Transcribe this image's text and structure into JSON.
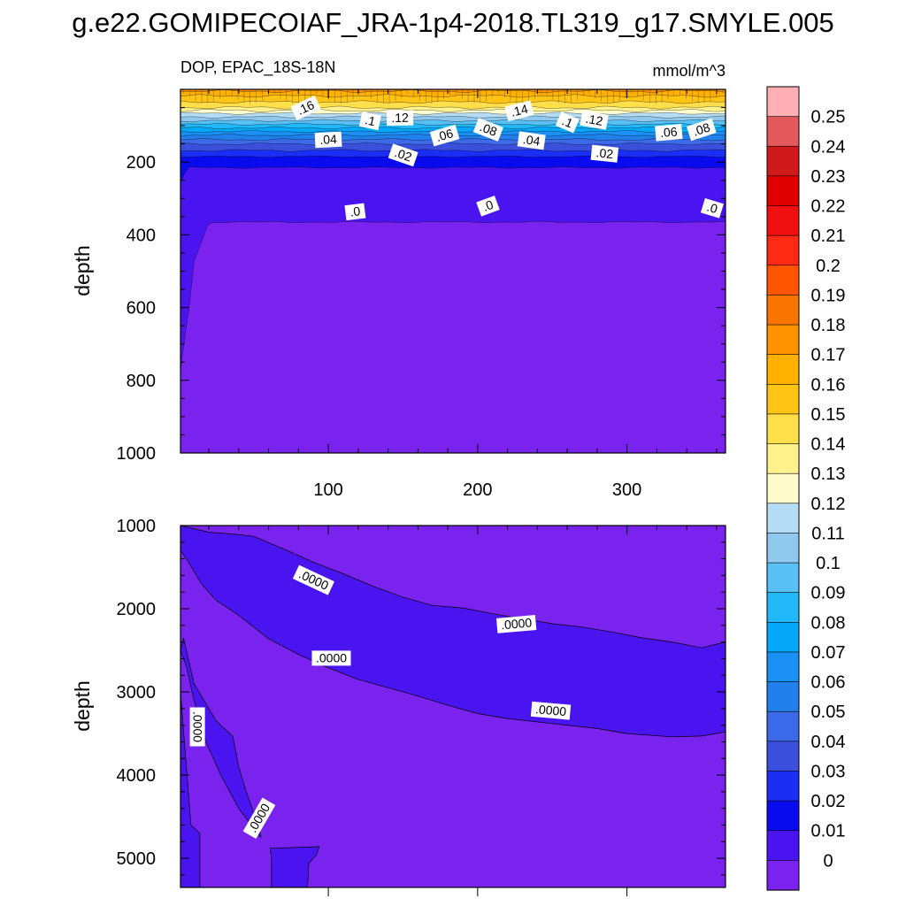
{
  "figure_title": "g.e22.GOMIPECOIAF_JRA-1p4-2018.TL319_g17.SMYLE.005",
  "chart_data": [
    {
      "type": "heatmap",
      "panel": "upper",
      "title_left": "DOP, EPAC_18S-18N",
      "title_right": "mmol/m^3",
      "xlabel": "",
      "ylabel": "depth",
      "xlim": [
        1,
        366
      ],
      "ylim": [
        1000,
        0
      ],
      "xticks": [
        100,
        200,
        300
      ],
      "xticklabels": [
        "100",
        "200",
        "300"
      ],
      "yticks": [
        200,
        400,
        600,
        800,
        1000
      ],
      "yticklabels": [
        "200",
        "400",
        "600",
        "800",
        "1000"
      ],
      "layers": [
        {
          "value": 0.17,
          "top": 0,
          "base": 5
        },
        {
          "value": 0.16,
          "top": 5,
          "base": 18
        },
        {
          "value": 0.15,
          "top": 18,
          "base": 35
        },
        {
          "value": 0.14,
          "top": 35,
          "base": 50
        },
        {
          "value": 0.13,
          "top": 50,
          "base": 58
        },
        {
          "value": 0.12,
          "top": 58,
          "base": 66
        },
        {
          "value": 0.11,
          "top": 66,
          "base": 76
        },
        {
          "value": 0.1,
          "top": 76,
          "base": 86
        },
        {
          "value": 0.09,
          "top": 86,
          "base": 96
        },
        {
          "value": 0.08,
          "top": 96,
          "base": 106
        },
        {
          "value": 0.07,
          "top": 106,
          "base": 116
        },
        {
          "value": 0.06,
          "top": 116,
          "base": 126
        },
        {
          "value": 0.05,
          "top": 126,
          "base": 138
        },
        {
          "value": 0.04,
          "top": 138,
          "base": 150
        },
        {
          "value": 0.03,
          "top": 150,
          "base": 168
        },
        {
          "value": 0.02,
          "top": 168,
          "base": 185
        },
        {
          "value": 0.01,
          "top": 185,
          "base": 215
        },
        {
          "value": 0.005,
          "top": 215,
          "base": 365
        },
        {
          "value": 0.0,
          "top": 365,
          "base": 1000
        }
      ],
      "contour_labels": [
        {
          "text": ".16",
          "x": 85,
          "y": 52
        },
        {
          "text": ".1",
          "x": 128,
          "y": 88
        },
        {
          "text": ".12",
          "x": 148,
          "y": 80
        },
        {
          "text": ".14",
          "x": 228,
          "y": 60
        },
        {
          "text": ".1",
          "x": 260,
          "y": 92
        },
        {
          "text": ".12",
          "x": 278,
          "y": 86
        },
        {
          "text": ".04",
          "x": 100,
          "y": 140
        },
        {
          "text": ".06",
          "x": 178,
          "y": 128
        },
        {
          "text": ".08",
          "x": 207,
          "y": 112
        },
        {
          "text": ".04",
          "x": 236,
          "y": 142
        },
        {
          "text": ".06",
          "x": 328,
          "y": 120
        },
        {
          "text": ".08",
          "x": 350,
          "y": 112
        },
        {
          "text": ".02",
          "x": 150,
          "y": 182
        },
        {
          "text": ".02",
          "x": 285,
          "y": 178
        },
        {
          "text": ".0",
          "x": 118,
          "y": 338
        },
        {
          "text": ".0",
          "x": 207,
          "y": 322
        },
        {
          "text": ".0",
          "x": 357,
          "y": 328
        }
      ]
    },
    {
      "type": "heatmap",
      "panel": "lower",
      "xlabel": "",
      "ylabel": "depth",
      "xlim": [
        1,
        366
      ],
      "ylim": [
        5350,
        1000
      ],
      "yticks": [
        1000,
        2000,
        3000,
        4000,
        5000
      ],
      "yticklabels": [
        "1000",
        "2000",
        "3000",
        "4000",
        "5000"
      ],
      "background_value": 0,
      "band_value": 0.0001,
      "contour_labels": [
        {
          "text": ".0000",
          "x": 90,
          "y": 1660
        },
        {
          "text": ".0000",
          "x": 102,
          "y": 2600
        },
        {
          "text": ".0000",
          "x": 226,
          "y": 2190
        },
        {
          "text": ".0000",
          "x": 249,
          "y": 3230
        },
        {
          "text": ".0000",
          "x": 12,
          "y": 3420
        },
        {
          "text": ".0000",
          "x": 54,
          "y": 4520
        }
      ]
    }
  ],
  "colorbar": {
    "labels": [
      "0.25",
      "0.24",
      "0.23",
      "0.22",
      "0.21",
      "0.2",
      "0.19",
      "0.18",
      "0.17",
      "0.16",
      "0.15",
      "0.14",
      "0.13",
      "0.12",
      "0.11",
      "0.1",
      "0.09",
      "0.08",
      "0.07",
      "0.06",
      "0.05",
      "0.04",
      "0.03",
      "0.02",
      "0.01",
      "0"
    ],
    "colors": [
      "#ffb0b4",
      "#e3585a",
      "#d0191b",
      "#e00000",
      "#f01010",
      "#ff2a14",
      "#ff5500",
      "#fa7400",
      "#ff9200",
      "#ffb000",
      "#ffc414",
      "#ffe04a",
      "#fff28c",
      "#fffccc",
      "#b4dcf4",
      "#90c8ee",
      "#58c0f4",
      "#20b8f6",
      "#05a8f8",
      "#1a90f4",
      "#2280ec",
      "#3c6ae8",
      "#3a50dc",
      "#1a2ef4",
      "#0a0aee",
      "#4a14f0",
      "#7a22ee"
    ]
  }
}
